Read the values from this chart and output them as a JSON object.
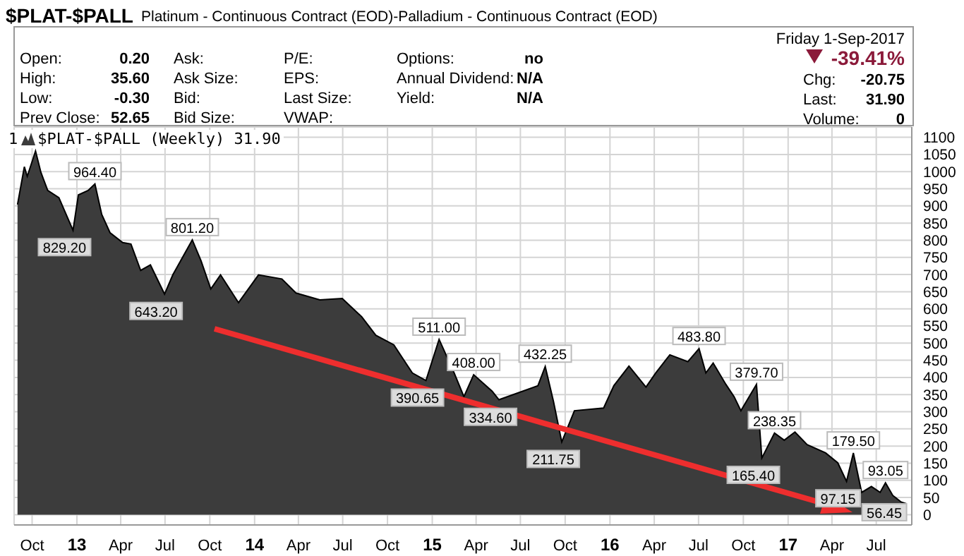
{
  "chart_data": {
    "type": "area",
    "title": "$PLAT-$PALL",
    "subtitle": "Platinum - Continuous Contract (EOD)-Palladium - Continuous Contract (EOD)",
    "series": [
      {
        "name": "$PLAT-$PALL (Weekly) 31.90",
        "color": "#3c3c3c",
        "x": [
          "2012-09-01",
          "2012-09-15",
          "2012-09-21",
          "2012-10-08",
          "2012-10-19",
          "2012-11-02",
          "2012-11-25",
          "2012-12-24",
          "2013-01-04",
          "2013-01-24",
          "2013-02-07",
          "2013-02-21",
          "2013-03-10",
          "2013-04-05",
          "2013-04-22",
          "2013-05-12",
          "2013-06-01",
          "2013-06-30",
          "2013-07-17",
          "2013-08-26",
          "2013-09-13",
          "2013-10-03",
          "2013-10-23",
          "2013-11-29",
          "2014-01-09",
          "2014-02-26",
          "2014-03-27",
          "2014-05-15",
          "2014-06-30",
          "2014-08-09",
          "2014-09-07",
          "2014-10-14",
          "2014-11-21",
          "2014-12-19",
          "2015-01-15",
          "2015-02-15",
          "2015-03-07",
          "2015-03-27",
          "2015-05-04",
          "2015-05-18",
          "2015-08-06",
          "2015-08-21",
          "2015-09-07",
          "2015-09-24",
          "2015-10-20",
          "2015-12-19",
          "2016-01-09",
          "2016-02-09",
          "2016-03-15",
          "2016-04-04",
          "2016-05-03",
          "2016-06-09",
          "2016-07-02",
          "2016-07-16",
          "2016-07-31",
          "2016-08-26",
          "2016-09-12",
          "2016-09-26",
          "2016-10-28",
          "2016-11-08",
          "2016-12-04",
          "2016-12-24",
          "2017-01-15",
          "2017-02-09",
          "2017-03-19",
          "2017-04-13",
          "2017-05-01",
          "2017-05-15",
          "2017-06-01",
          "2017-06-21",
          "2017-07-09",
          "2017-07-20",
          "2017-08-04",
          "2017-08-21",
          "2017-09-01"
        ],
        "values": [
          904,
          1014,
          986,
          1060,
          998,
          945,
          924,
          829,
          932,
          945,
          964,
          875,
          822,
          793,
          789,
          712,
          728,
          643,
          699,
          801,
          740,
          658,
          699,
          618,
          699,
          687,
          646,
          626,
          630,
          577,
          523,
          495,
          413,
          391,
          511,
          413,
          344,
          408,
          360,
          335,
          376,
          432,
          330,
          212,
          303,
          311,
          376,
          433,
          372,
          413,
          466,
          446,
          484,
          413,
          442,
          380,
          344,
          303,
          380,
          165,
          238,
          217,
          241,
          204,
          180,
          151,
          97,
          180,
          65,
          82,
          65,
          93,
          56,
          37,
          32
        ]
      }
    ],
    "xlim": [
      "2012-08-25",
      "2017-09-12"
    ],
    "xticks": [
      {
        "value": "2012-10-01",
        "label": "Oct"
      },
      {
        "value": "2013-01-01",
        "label": "13"
      },
      {
        "value": "2013-04-01",
        "label": "Apr"
      },
      {
        "value": "2013-07-01",
        "label": "Jul"
      },
      {
        "value": "2013-10-01",
        "label": "Oct"
      },
      {
        "value": "2014-01-01",
        "label": "14"
      },
      {
        "value": "2014-04-01",
        "label": "Apr"
      },
      {
        "value": "2014-07-01",
        "label": "Jul"
      },
      {
        "value": "2014-10-01",
        "label": "Oct"
      },
      {
        "value": "2015-01-01",
        "label": "15"
      },
      {
        "value": "2015-04-01",
        "label": "Apr"
      },
      {
        "value": "2015-07-01",
        "label": "Jul"
      },
      {
        "value": "2015-10-01",
        "label": "Oct"
      },
      {
        "value": "2016-01-01",
        "label": "16"
      },
      {
        "value": "2016-04-01",
        "label": "Apr"
      },
      {
        "value": "2016-07-01",
        "label": "Jul"
      },
      {
        "value": "2016-10-01",
        "label": "Oct"
      },
      {
        "value": "2017-01-01",
        "label": "17"
      },
      {
        "value": "2017-04-01",
        "label": "Apr"
      },
      {
        "value": "2017-07-01",
        "label": "Jul"
      }
    ],
    "ylim": [
      -30,
      1130
    ],
    "yticks": [
      0,
      50,
      100,
      150,
      200,
      250,
      300,
      350,
      400,
      450,
      500,
      550,
      600,
      650,
      700,
      750,
      800,
      850,
      900,
      950,
      1000,
      1050,
      1100
    ],
    "grid": true,
    "legend": "top left",
    "marker": "none",
    "annotations": [
      "1",
      "Open:",
      "0.20",
      "High:",
      "35.60",
      "Low:",
      "-0.30",
      "Prev Close:",
      "52.65",
      "Ask:",
      "Ask Size:",
      "Bid:",
      "Bid Size:",
      "P/E:",
      "EPS:",
      "Last Size:",
      "VWAP:",
      "Options:",
      "no",
      "Annual Dividend:",
      "N/A",
      "Yield:",
      "N/A",
      "Friday  1-Sep-2017",
      "-39.41%",
      "Chg:",
      "-20.75",
      "Last:",
      "31.90",
      "Volume:",
      "0",
      {
        "text": "964.40",
        "x": "2013-02-07",
        "y": 964.4
      },
      {
        "text": "829.20",
        "x": "2012-12-24",
        "y": 829.2
      },
      {
        "text": "801.20",
        "x": "2013-08-26",
        "y": 801.2
      },
      {
        "text": "643.20",
        "x": "2013-06-30",
        "y": 643.2
      },
      {
        "text": "511.00",
        "x": "2015-01-15",
        "y": 511
      },
      {
        "text": "390.65",
        "x": "2014-12-19",
        "y": 390.65
      },
      {
        "text": "408.00",
        "x": "2015-03-27",
        "y": 408
      },
      {
        "text": "334.60",
        "x": "2015-05-18",
        "y": 334.6
      },
      {
        "text": "432.25",
        "x": "2015-08-21",
        "y": 432.25
      },
      {
        "text": "211.75",
        "x": "2015-09-24",
        "y": 211.75
      },
      {
        "text": "483.80",
        "x": "2016-07-02",
        "y": 483.8
      },
      {
        "text": "379.70",
        "x": "2016-10-28",
        "y": 379.7
      },
      {
        "text": "238.35",
        "x": "2016-12-04",
        "y": 238.35
      },
      {
        "text": "165.40",
        "x": "2016-11-08",
        "y": 165.4
      },
      {
        "text": "179.50",
        "x": "2017-05-15",
        "y": 179.5
      },
      {
        "text": "97.15",
        "x": "2017-05-01",
        "y": 97.15
      },
      {
        "text": "93.05",
        "x": "2017-07-20",
        "y": 93.05
      },
      {
        "text": "56.45",
        "x": "2017-08-04",
        "y": 56.45
      }
    ]
  }
}
